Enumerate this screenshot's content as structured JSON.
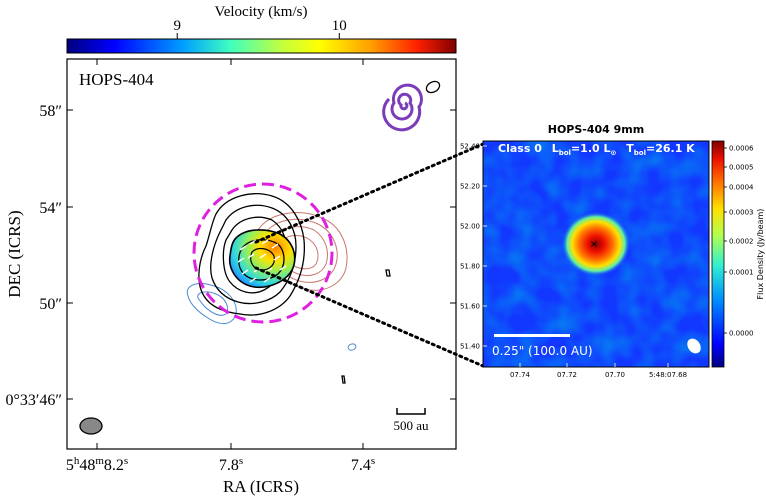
{
  "left_panel": {
    "colorbar": {
      "title": "Velocity (km/s)",
      "ticks": [
        {
          "value": 9,
          "label": "9"
        },
        {
          "value": 10,
          "label": "10"
        }
      ],
      "vmin": 8.32,
      "vmax": 10.72,
      "cmap": [
        "#00007f",
        "#0000ff",
        "#00a0ff",
        "#3fffbf",
        "#c0ff40",
        "#ffff00",
        "#ffa000",
        "#ff2000",
        "#7f0000"
      ]
    },
    "source_name": "HOPS-404",
    "y_axis": {
      "label": "DEC (ICRS)",
      "ticks": [
        "58″",
        "54″",
        "50″",
        "0°33′46″"
      ]
    },
    "x_axis": {
      "label": "RA (ICRS)",
      "ticks": [
        "5h48m8.2s",
        "7.8s",
        "7.4s"
      ]
    },
    "scalebar_label": "500 au",
    "colors": {
      "dashed_circle": "#e020e0",
      "spiral": "#7a3cb8",
      "contour_black": "#000000",
      "contour_red": "#c8786e",
      "contour_blue": "#4a8ad0"
    }
  },
  "right_panel": {
    "title": "HOPS-404 9mm",
    "header_text": "Class 0  L_bol=1.0 L_sun  T_bol=26.1 K",
    "header_parts": {
      "class": "Class 0",
      "lbol": "1.0",
      "tbol": "26.1"
    },
    "y_ticks": [
      "52.40",
      "52.20",
      "52.00",
      "51.80",
      "51.60",
      "51.40"
    ],
    "x_ticks": [
      "07.74",
      "07.72",
      "07.70",
      "5:48:07.68"
    ],
    "scalebar_label": "0.25\" (100.0 AU)",
    "colorbar": {
      "label": "Flux Density (Jy/beam)",
      "ticks": [
        "0.0006",
        "0.0005",
        "0.0004",
        "0.0003",
        "0.0002",
        "0.0001",
        "0.0000"
      ]
    }
  }
}
